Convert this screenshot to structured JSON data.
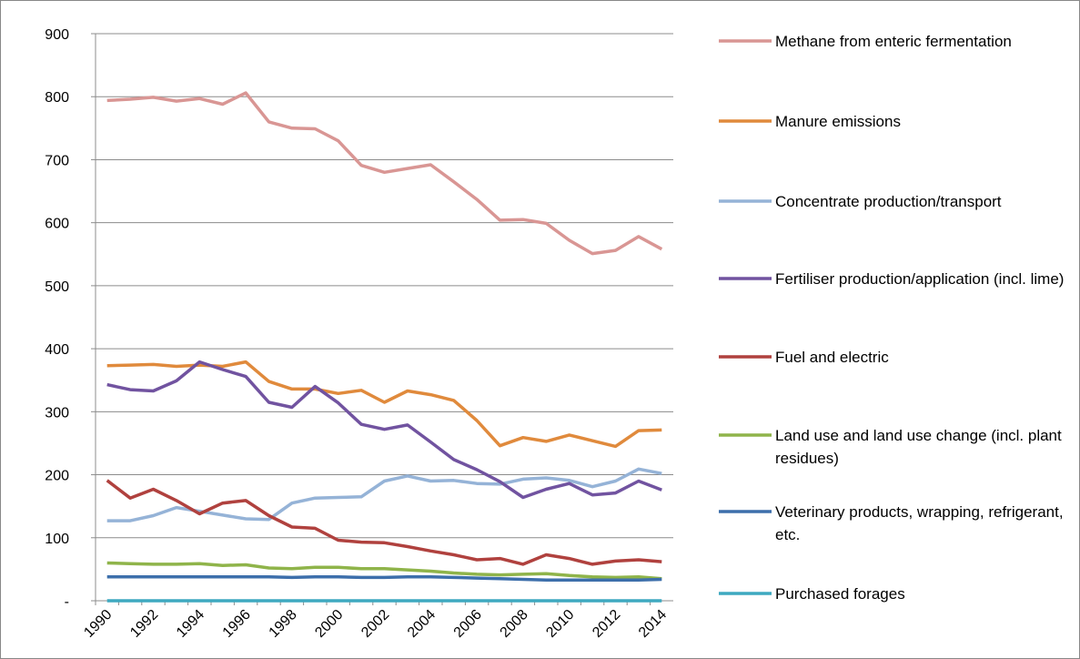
{
  "chart_data": {
    "type": "line",
    "categories": [
      "1990",
      null,
      "1992",
      null,
      "1994",
      null,
      "1996",
      null,
      "1998",
      null,
      "2000",
      null,
      "2002",
      null,
      "2004",
      null,
      "2006",
      null,
      "2008",
      null,
      "2010",
      null,
      "2012",
      null,
      "2014"
    ],
    "ylim": [
      0,
      900
    ],
    "yticks": [
      {
        "value": 0,
        "label": "-"
      },
      100,
      200,
      300,
      400,
      500,
      600,
      700,
      800,
      900
    ],
    "grid": true,
    "legend": "right",
    "series": [
      {
        "name": "Methane from enteric fermentation",
        "color": "#d99694",
        "values": [
          794,
          796,
          799,
          793,
          797,
          788,
          806,
          760,
          750,
          749,
          730,
          691,
          680,
          686,
          692,
          665,
          637,
          604,
          605,
          599,
          572,
          551,
          556,
          578,
          558
        ]
      },
      {
        "name": "Manure emissions",
        "color": "#e08a3c",
        "values": [
          373,
          374,
          375,
          372,
          374,
          372,
          379,
          348,
          336,
          336,
          329,
          334,
          315,
          333,
          327,
          318,
          286,
          246,
          259,
          253,
          263,
          254,
          245,
          270,
          271
        ]
      },
      {
        "name": "Concentrate production/transport",
        "color": "#95b3d7",
        "values": [
          127,
          127,
          135,
          148,
          142,
          136,
          130,
          129,
          155,
          163,
          164,
          165,
          190,
          198,
          190,
          191,
          186,
          185,
          193,
          195,
          191,
          181,
          190,
          209,
          202
        ]
      },
      {
        "name": "Fertiliser production/application (incl. lime)",
        "color": "#7153a0",
        "values": [
          343,
          335,
          333,
          349,
          379,
          367,
          356,
          315,
          307,
          340,
          314,
          280,
          272,
          279,
          252,
          224,
          208,
          189,
          164,
          177,
          186,
          168,
          171,
          190,
          176
        ]
      },
      {
        "name": "Fuel and electric",
        "color": "#b0413e",
        "values": [
          191,
          163,
          177,
          159,
          138,
          155,
          159,
          135,
          117,
          115,
          96,
          93,
          92,
          86,
          79,
          73,
          65,
          67,
          58,
          73,
          67,
          58,
          63,
          65,
          62
        ]
      },
      {
        "name": "Land use and land use change (incl. plant residues)",
        "color": "#8fb44a",
        "values": [
          60,
          59,
          58,
          58,
          59,
          56,
          57,
          52,
          51,
          53,
          53,
          51,
          51,
          49,
          47,
          44,
          42,
          41,
          42,
          43,
          40,
          38,
          37,
          38,
          35
        ]
      },
      {
        "name": "Veterinary products, wrapping, refrigerant, etc.",
        "color": "#3d6fab",
        "values": [
          38,
          38,
          38,
          38,
          38,
          38,
          38,
          38,
          37,
          38,
          38,
          37,
          37,
          38,
          38,
          37,
          36,
          35,
          34,
          33,
          33,
          33,
          33,
          33,
          34
        ]
      },
      {
        "name": "Purchased forages",
        "color": "#3ea9c0",
        "values": [
          0,
          0,
          0,
          0,
          0,
          0,
          0,
          0,
          0,
          0,
          0,
          0,
          0,
          0,
          0,
          0,
          0,
          0,
          0,
          0,
          0,
          0,
          0,
          0,
          0
        ]
      }
    ]
  }
}
